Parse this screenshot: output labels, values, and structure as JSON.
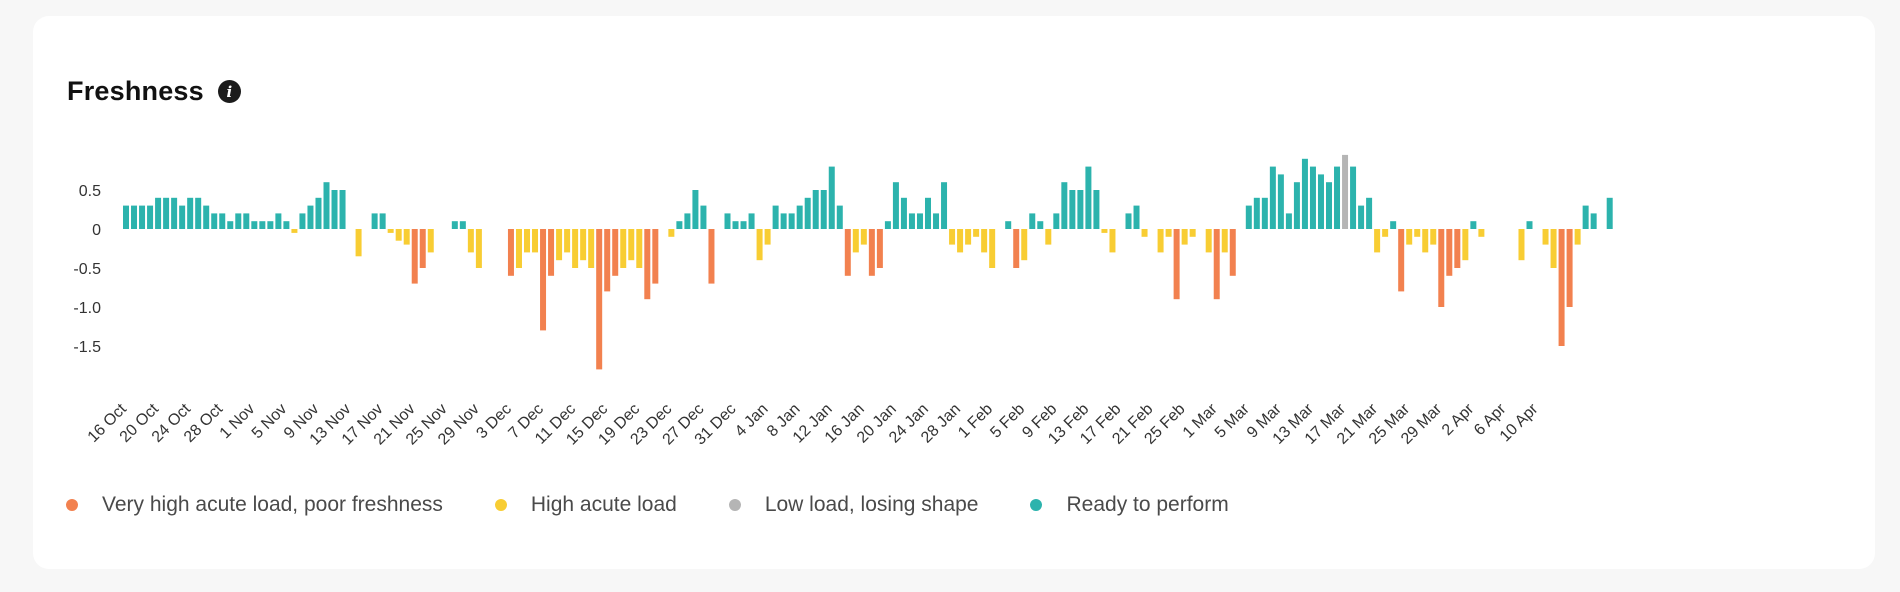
{
  "title": "Freshness",
  "info_glyph": "i",
  "legend": [
    {
      "label": "Very high acute load, poor freshness",
      "color": "#f2814f"
    },
    {
      "label": "High acute load",
      "color": "#f8cd33"
    },
    {
      "label": "Low load, losing shape",
      "color": "#b5b5b5"
    },
    {
      "label": "Ready to perform",
      "color": "#2cb3ad"
    }
  ],
  "chart_data": {
    "type": "bar",
    "title": "Freshness",
    "xlabel": "",
    "ylabel": "",
    "ylim": [
      -2.0,
      0.75
    ],
    "y_ticks": [
      0.5,
      0,
      -0.5,
      -1.0,
      -1.5
    ],
    "y_tick_labels": [
      "0.5",
      "0",
      "-0.5",
      "-1.0",
      "-1.5"
    ],
    "x_start": "2023-10-16",
    "x_ticks": [
      "16 Oct",
      "20 Oct",
      "24 Oct",
      "28 Oct",
      "1 Nov",
      "5 Nov",
      "9 Nov",
      "13 Nov",
      "17 Nov",
      "21 Nov",
      "25 Nov",
      "29 Nov",
      "3 Dec",
      "7 Dec",
      "11 Dec",
      "15 Dec",
      "19 Dec",
      "23 Dec",
      "27 Dec",
      "31 Dec",
      "4 Jan",
      "8 Jan",
      "12 Jan",
      "16 Jan",
      "20 Jan",
      "24 Jan",
      "28 Jan",
      "1 Feb",
      "5 Feb",
      "9 Feb",
      "13 Feb",
      "17 Feb",
      "21 Feb",
      "25 Feb",
      "1 Mar",
      "5 Mar",
      "9 Mar",
      "13 Mar",
      "17 Mar",
      "21 Mar",
      "25 Mar",
      "29 Mar",
      "2 Apr",
      "6 Apr",
      "10 Apr"
    ],
    "category_colors": {
      "very_high": "#f2814f",
      "high": "#f8cd33",
      "low": "#b5b5b5",
      "ready": "#2cb3ad"
    },
    "values": [
      0.3,
      0.3,
      0.3,
      0.3,
      0.4,
      0.4,
      0.4,
      0.3,
      0.4,
      0.4,
      0.3,
      0.2,
      0.2,
      0.1,
      0.2,
      0.2,
      0.1,
      0.1,
      0.1,
      0.2,
      0.1,
      -0.05,
      0.2,
      0.3,
      0.4,
      0.6,
      0.5,
      0.5,
      0,
      -0.35,
      0,
      0.2,
      0.2,
      -0.05,
      -0.15,
      -0.2,
      -0.7,
      -0.5,
      -0.3,
      0,
      0,
      0.1,
      0.1,
      -0.3,
      -0.5,
      0,
      0,
      0,
      -0.6,
      -0.5,
      -0.3,
      -0.3,
      -1.3,
      -0.6,
      -0.4,
      -0.3,
      -0.5,
      -0.4,
      -0.5,
      -1.8,
      -0.8,
      -0.6,
      -0.5,
      -0.4,
      -0.5,
      -0.9,
      -0.7,
      0,
      -0.1,
      0.1,
      0.2,
      0.5,
      0.3,
      -0.7,
      0,
      0.2,
      0.1,
      0.1,
      0.2,
      -0.4,
      -0.2,
      0.3,
      0.2,
      0.2,
      0.3,
      0.4,
      0.5,
      0.5,
      0.8,
      0.3,
      -0.6,
      -0.3,
      -0.2,
      -0.6,
      -0.5,
      0.1,
      0.6,
      0.4,
      0.2,
      0.2,
      0.4,
      0.2,
      0.6,
      -0.2,
      -0.3,
      -0.2,
      -0.1,
      -0.3,
      -0.5,
      0,
      0.1,
      -0.5,
      -0.4,
      0.2,
      0.1,
      -0.2,
      0.2,
      0.6,
      0.5,
      0.5,
      0.8,
      0.5,
      -0.05,
      -0.3,
      0,
      0.2,
      0.3,
      -0.1,
      0,
      -0.3,
      -0.1,
      -0.9,
      -0.2,
      -0.1,
      0,
      -0.3,
      -0.9,
      -0.3,
      -0.6,
      0,
      0.3,
      0.4,
      0.4,
      0.8,
      0.7,
      0.2,
      0.6,
      0.9,
      0.8,
      0.7,
      0.6,
      0.8,
      0.95,
      0.8,
      0.3,
      0.4,
      -0.3,
      -0.1,
      0.1,
      -0.8,
      -0.2,
      -0.1,
      -0.3,
      -0.2,
      -1.0,
      -0.6,
      -0.5,
      -0.4,
      0.1,
      -0.1,
      0,
      0,
      0,
      0,
      -0.4,
      0.1,
      0,
      -0.2,
      -0.5,
      -1.5,
      -1.0,
      -0.2,
      0.3,
      0.2,
      0,
      0.4
    ],
    "categories": [
      "ready",
      "ready",
      "ready",
      "ready",
      "ready",
      "ready",
      "ready",
      "ready",
      "ready",
      "ready",
      "ready",
      "ready",
      "ready",
      "ready",
      "ready",
      "ready",
      "ready",
      "ready",
      "ready",
      "ready",
      "ready",
      "high",
      "ready",
      "ready",
      "ready",
      "ready",
      "ready",
      "ready",
      "ready",
      "high",
      "ready",
      "ready",
      "ready",
      "high",
      "high",
      "high",
      "very_high",
      "very_high",
      "high",
      "ready",
      "ready",
      "ready",
      "ready",
      "high",
      "high",
      "ready",
      "ready",
      "ready",
      "very_high",
      "high",
      "high",
      "high",
      "very_high",
      "very_high",
      "high",
      "high",
      "high",
      "high",
      "high",
      "very_high",
      "very_high",
      "very_high",
      "high",
      "high",
      "high",
      "very_high",
      "very_high",
      "ready",
      "high",
      "ready",
      "ready",
      "ready",
      "ready",
      "very_high",
      "ready",
      "ready",
      "ready",
      "ready",
      "ready",
      "high",
      "high",
      "ready",
      "ready",
      "ready",
      "ready",
      "ready",
      "ready",
      "ready",
      "ready",
      "ready",
      "very_high",
      "high",
      "high",
      "very_high",
      "very_high",
      "ready",
      "ready",
      "ready",
      "ready",
      "ready",
      "ready",
      "ready",
      "ready",
      "high",
      "high",
      "high",
      "high",
      "high",
      "high",
      "ready",
      "ready",
      "very_high",
      "high",
      "ready",
      "ready",
      "high",
      "ready",
      "ready",
      "ready",
      "ready",
      "ready",
      "ready",
      "high",
      "high",
      "ready",
      "ready",
      "ready",
      "high",
      "ready",
      "high",
      "high",
      "very_high",
      "high",
      "high",
      "ready",
      "high",
      "very_high",
      "high",
      "very_high",
      "ready",
      "ready",
      "ready",
      "ready",
      "ready",
      "ready",
      "ready",
      "ready",
      "ready",
      "ready",
      "ready",
      "ready",
      "ready",
      "low",
      "ready",
      "ready",
      "ready",
      "high",
      "high",
      "ready",
      "very_high",
      "high",
      "high",
      "high",
      "high",
      "very_high",
      "very_high",
      "very_high",
      "high",
      "ready",
      "high",
      "ready",
      "ready",
      "ready",
      "ready",
      "high",
      "ready",
      "ready",
      "high",
      "high",
      "very_high",
      "very_high",
      "high",
      "ready",
      "ready",
      "ready",
      "ready"
    ]
  }
}
